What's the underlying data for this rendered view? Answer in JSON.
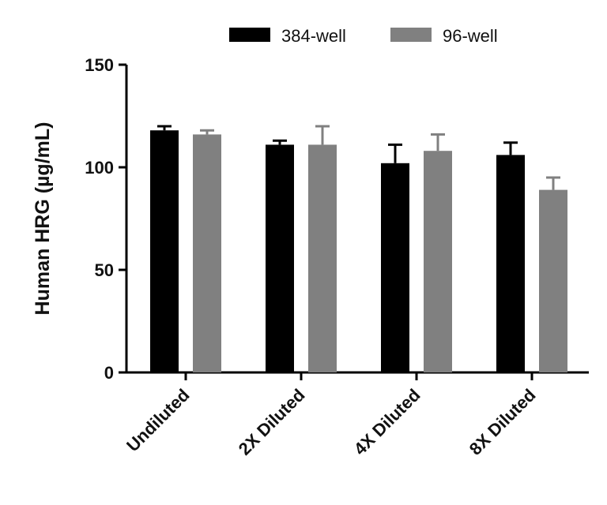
{
  "chart_data": {
    "type": "bar",
    "title": "",
    "xlabel": "",
    "ylabel": "Human HRG (µg/mL)",
    "ylim": [
      0,
      150
    ],
    "yticks": [
      0,
      50,
      100,
      150
    ],
    "categories": [
      "Undiluted",
      "2X Diluted",
      "4X Diluted",
      "8X Diluted"
    ],
    "series": [
      {
        "name": "384-well",
        "color": "#000000",
        "values": [
          118,
          111,
          102,
          106
        ],
        "errors": [
          2,
          2,
          9,
          6
        ]
      },
      {
        "name": "96-well",
        "color": "#808080",
        "values": [
          116,
          111,
          108,
          89
        ],
        "errors": [
          2,
          9,
          8,
          6
        ]
      }
    ],
    "grid": false,
    "legend": "top"
  }
}
